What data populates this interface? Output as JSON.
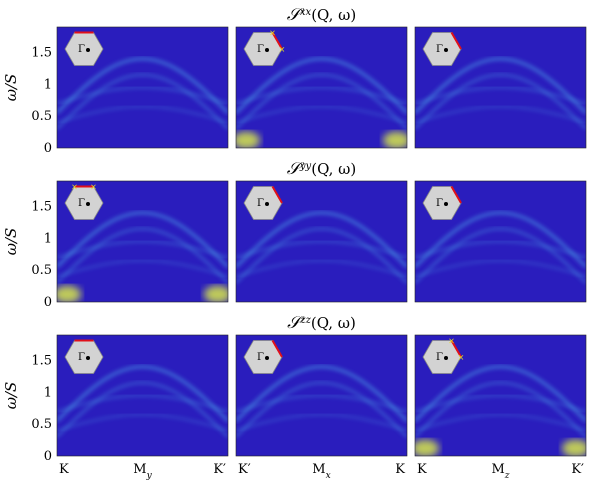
{
  "chart_data": {
    "type": "heatmap",
    "ylabel": "ω/S",
    "yticks": [
      "0",
      "0.5",
      "1",
      "1.5"
    ],
    "ylim": [
      0,
      1.9
    ],
    "rows": [
      {
        "title": "𝒮",
        "sup": "xx",
        "arg": "(Q, ω)"
      },
      {
        "title": "𝒮",
        "sup": "yy",
        "arg": "(Q, ω)"
      },
      {
        "title": "𝒮",
        "sup": "zz",
        "arg": "(Q, ω)"
      }
    ],
    "columns": [
      {
        "start": "K",
        "mid": "M",
        "mid_sub": "y",
        "end": "K′"
      },
      {
        "start": "K′",
        "mid": "M",
        "mid_sub": "x",
        "end": "K"
      },
      {
        "start": "K",
        "mid": "M",
        "mid_sub": "z",
        "end": "K′"
      }
    ],
    "inset_label": "Γ",
    "bright_panels": [
      "0-1",
      "1-0",
      "2-2"
    ],
    "colors": {
      "background": "#2a1dbd",
      "band": "#4fb5ee",
      "bright": "#d9e84a",
      "path": "#e0101a",
      "marker": "#e8e020",
      "inset": "#d3d3d3"
    }
  }
}
